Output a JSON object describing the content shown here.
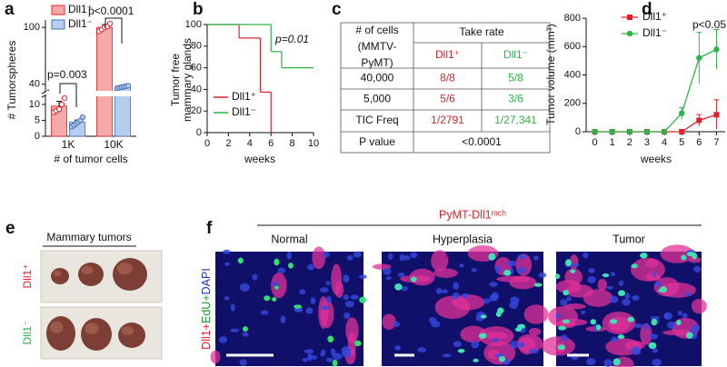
{
  "panel_labels": [
    "a",
    "b",
    "c",
    "d",
    "e",
    "f"
  ],
  "chart_data": [
    {
      "type": "bar",
      "ylabel": "# Tumorspheres",
      "xlabel": "# of tumor cells",
      "categories": [
        "1K",
        "10K"
      ],
      "series": [
        {
          "name": "Dll1⁺",
          "color": "#f6a9a6",
          "edge": "#e0202a",
          "values": [
            9.5,
            100
          ],
          "errors": [
            1.5,
            3
          ],
          "points": [
            [
              7.5,
              8,
              8.5,
              10,
              12
            ],
            [
              96,
              98,
              100,
              101,
              104
            ]
          ]
        },
        {
          "name": "Dll1⁻",
          "color": "#b5cdef",
          "edge": "#4a6fb0",
          "values": [
            4.5,
            37
          ],
          "errors": [
            0.6,
            0.8
          ],
          "points": [
            [
              3,
              3.5,
              4,
              4.5,
              5,
              6
            ],
            [
              36,
              36.5,
              37,
              37.5,
              38,
              38.5
            ]
          ]
        }
      ],
      "ylim": [
        0,
        105
      ],
      "axis_break": [
        12,
        35
      ],
      "yticks": [
        0,
        5,
        10,
        40,
        100
      ],
      "annotations": [
        "p=0.003",
        "p<0.0001"
      ],
      "legend": "upper left"
    },
    {
      "type": "step",
      "ylabel": [
        "Tumor free",
        "mammary glands"
      ],
      "xlabel": "weeks",
      "annotation": "p=0.01",
      "xlim": [
        0,
        10
      ],
      "xticks": [
        0,
        2,
        4,
        6,
        8,
        10
      ],
      "ylim": [
        0,
        100
      ],
      "yticks": [
        0,
        20,
        40,
        60,
        80,
        100
      ],
      "series": [
        {
          "name": "Dll1⁺",
          "color": "#e0202a",
          "x": [
            0,
            3,
            5,
            6
          ],
          "values": [
            100,
            87.5,
            37.5,
            0
          ]
        },
        {
          "name": "Dll1⁻",
          "color": "#2db34a",
          "x": [
            0,
            6,
            7,
            10
          ],
          "values": [
            100,
            75,
            60,
            60
          ]
        }
      ],
      "legend": "lower left"
    },
    {
      "type": "line",
      "ylabel": "Tumor volume (mm³)",
      "xlabel": "weeks",
      "annotation": "p<0.05",
      "xlim": [
        -0.5,
        7.5
      ],
      "xticks": [
        0,
        1,
        2,
        3,
        4,
        5,
        6,
        7
      ],
      "ylim": [
        0,
        800
      ],
      "yticks": [
        0,
        200,
        400,
        600,
        800
      ],
      "series": [
        {
          "name": "Dll1⁺",
          "color": "#e0202a",
          "marker": "square",
          "x": [
            0,
            1,
            2,
            3,
            4,
            5,
            6,
            7
          ],
          "values": [
            0,
            0,
            0,
            0,
            0,
            0,
            80,
            120
          ],
          "errors": [
            0,
            0,
            0,
            0,
            0,
            0,
            40,
            105
          ]
        },
        {
          "name": "Dll1⁻",
          "color": "#2db34a",
          "marker": "circle",
          "x": [
            0,
            1,
            2,
            3,
            4,
            5,
            6,
            7
          ],
          "values": [
            0,
            0,
            0,
            0,
            0,
            130,
            520,
            580
          ],
          "errors": [
            0,
            0,
            0,
            0,
            0,
            40,
            180,
            140
          ]
        }
      ],
      "legend": "upper left"
    }
  ],
  "table": {
    "corner": [
      "# of cells",
      "(MMTV-",
      "PyMT)"
    ],
    "group": "Take rate",
    "columns": [
      "Dll1⁺",
      "Dll1⁻"
    ],
    "column_colors": [
      "#e0202a",
      "#2db34a"
    ],
    "rows": [
      [
        "40,000",
        "8/8",
        "5/8"
      ],
      [
        "5,000",
        "5/6",
        "3/6"
      ],
      [
        "TIC Freq",
        "1/2791",
        "1/27,341"
      ]
    ],
    "p_row": [
      "P value",
      "<0.0001"
    ]
  },
  "panel_e": {
    "title": "Mammary tumors",
    "rows": [
      "Dll1⁺",
      "Dll1⁻"
    ],
    "row_colors": [
      "#e0202a",
      "#2db34a"
    ]
  },
  "panel_f": {
    "title": "PyMT-Dll1ᵐᶜʰ",
    "title_color": "#e0202a",
    "columns": [
      "Normal",
      "Hyperplasia",
      "Tumor"
    ],
    "stain": [
      {
        "text": "Dll1+",
        "color": "#e0202a"
      },
      {
        "text": "EdU+",
        "color": "#1a9a2e"
      },
      {
        "text": "DAPI",
        "color": "#2030c0"
      }
    ]
  }
}
